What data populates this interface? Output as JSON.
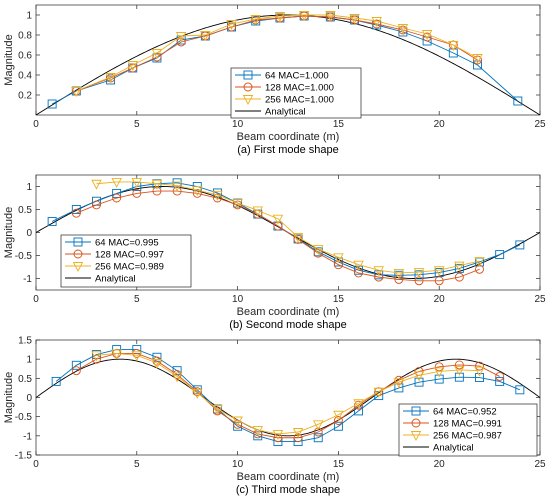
{
  "colors": {
    "s64": "#0072BD",
    "s128": "#D95319",
    "s256": "#EDB120",
    "analytical": "#000000",
    "axis": "#262626"
  },
  "chart_data": [
    {
      "type": "line",
      "caption": "(a) First mode shape",
      "xlabel": "Beam coordinate (m)",
      "ylabel": "Magnitude",
      "xlim": [
        0,
        25
      ],
      "ylim": [
        0,
        1.1
      ],
      "xticks": [
        "0",
        "5",
        "10",
        "15",
        "20",
        "25"
      ],
      "yticks": [
        {
          "v": 0.2,
          "label": "0.2"
        },
        {
          "v": 0.4,
          "label": "0.4"
        },
        {
          "v": 0.6,
          "label": "0.6"
        },
        {
          "v": 0.8,
          "label": "0.8"
        },
        {
          "v": 1.0,
          "label": "1"
        }
      ],
      "legend": {
        "position": "center-bottom",
        "entries": [
          "64 MAC=1.000",
          "128 MAC=1.000",
          "256 MAC=1.000",
          "Analytical"
        ]
      },
      "analytical": {
        "mode": 1,
        "scale": 1.0
      },
      "series": [
        {
          "name": "64 MAC=1.000",
          "marker": "square",
          "x": [
            0.8,
            2.0,
            3.7,
            4.8,
            6.0,
            7.2,
            8.4,
            9.7,
            10.9,
            12.1,
            13.3,
            14.6,
            15.8,
            16.9,
            18.2,
            19.4,
            20.7,
            21.9,
            23.9
          ],
          "y": [
            0.11,
            0.24,
            0.35,
            0.47,
            0.57,
            0.75,
            0.79,
            0.88,
            0.94,
            0.97,
            0.99,
            0.98,
            0.95,
            0.9,
            0.83,
            0.74,
            0.62,
            0.5,
            0.14
          ]
        },
        {
          "name": "128 MAC=1.000",
          "marker": "circle",
          "x": [
            2.0,
            3.7,
            4.8,
            6.0,
            7.2,
            8.4,
            9.7,
            10.9,
            12.1,
            13.3,
            14.6,
            15.8,
            16.9,
            18.2,
            19.4,
            20.7,
            21.9
          ],
          "y": [
            0.24,
            0.37,
            0.47,
            0.58,
            0.73,
            0.79,
            0.88,
            0.95,
            0.97,
            0.99,
            0.98,
            0.95,
            0.91,
            0.85,
            0.78,
            0.7,
            0.55
          ]
        },
        {
          "name": "256 MAC=1.000",
          "marker": "triangle-down",
          "x": [
            2.0,
            3.7,
            4.8,
            6.0,
            7.2,
            8.4,
            9.7,
            10.9,
            12.1,
            13.3,
            14.6,
            15.8,
            16.9,
            18.2,
            19.4,
            20.7,
            21.9
          ],
          "y": [
            0.24,
            0.38,
            0.5,
            0.62,
            0.79,
            0.8,
            0.91,
            0.96,
            0.99,
            1.0,
            1.0,
            0.97,
            0.94,
            0.87,
            0.81,
            0.7,
            0.57
          ]
        }
      ]
    },
    {
      "type": "line",
      "caption": "(b) Second mode shape",
      "xlabel": "Beam coordinate (m)",
      "ylabel": "Magnitude",
      "xlim": [
        0,
        25
      ],
      "ylim": [
        -1.25,
        1.25
      ],
      "xticks": [
        "0",
        "5",
        "10",
        "15",
        "20",
        "25"
      ],
      "yticks": [
        {
          "v": -1,
          "label": "-1"
        },
        {
          "v": -0.5,
          "label": "-0.5"
        },
        {
          "v": 0,
          "label": "0"
        },
        {
          "v": 0.5,
          "label": "0.5"
        },
        {
          "v": 1,
          "label": "1"
        }
      ],
      "legend": {
        "position": "bottom-left",
        "entries": [
          "64 MAC=0.995",
          "128 MAC=0.997",
          "256 MAC=0.989",
          "Analytical"
        ]
      },
      "analytical": {
        "mode": 2,
        "scale": 1.0
      },
      "series": [
        {
          "name": "64 MAC=0.995",
          "marker": "square",
          "x": [
            0.8,
            2.0,
            3.0,
            4.0,
            5.0,
            6.0,
            7.0,
            8.0,
            9.0,
            10.0,
            11.0,
            12.0,
            13.0,
            14.0,
            15.0,
            16.0,
            17.0,
            18.0,
            19.0,
            20.0,
            21.0,
            22.0,
            23.0,
            24.0
          ],
          "y": [
            0.24,
            0.5,
            0.68,
            0.85,
            1.0,
            1.06,
            1.08,
            1.0,
            0.86,
            0.64,
            0.4,
            0.14,
            -0.14,
            -0.42,
            -0.64,
            -0.82,
            -0.92,
            -0.93,
            -0.92,
            -0.87,
            -0.78,
            -0.64,
            -0.48,
            -0.27
          ]
        },
        {
          "name": "128 MAC=0.997",
          "marker": "circle",
          "x": [
            2.0,
            3.0,
            4.0,
            5.0,
            6.0,
            7.0,
            8.0,
            9.0,
            10.0,
            11.0,
            12.0,
            13.0,
            14.0,
            15.0,
            16.0,
            17.0,
            18.0,
            19.0,
            20.0,
            21.0,
            22.0
          ],
          "y": [
            0.42,
            0.6,
            0.75,
            0.85,
            0.9,
            0.9,
            0.85,
            0.75,
            0.6,
            0.4,
            0.14,
            -0.15,
            -0.45,
            -0.7,
            -0.88,
            -0.97,
            -1.02,
            -1.05,
            -1.05,
            -0.97,
            -0.8
          ]
        },
        {
          "name": "256 MAC=0.989",
          "marker": "triangle-down",
          "x": [
            3.0,
            4.0,
            5.0,
            6.0,
            7.0,
            8.0,
            9.0,
            10.0,
            11.0,
            12.0,
            13.0,
            14.0,
            15.0,
            16.0,
            17.0,
            18.0,
            19.0,
            20.0,
            21.0,
            22.0
          ],
          "y": [
            1.06,
            1.1,
            1.1,
            1.06,
            1.02,
            0.92,
            0.82,
            0.64,
            0.48,
            0.3,
            -0.1,
            -0.36,
            -0.54,
            -0.7,
            -0.82,
            -0.88,
            -0.86,
            -0.82,
            -0.72,
            -0.62
          ]
        }
      ]
    },
    {
      "type": "line",
      "caption": "(c) Third mode shape",
      "xlabel": "Beam coordinate (m)",
      "ylabel": "Magnitude",
      "xlim": [
        0,
        25
      ],
      "ylim": [
        -1.5,
        1.5
      ],
      "xticks": [
        "0",
        "5",
        "10",
        "15",
        "20",
        "25"
      ],
      "yticks": [
        {
          "v": -1.5,
          "label": "-1.5"
        },
        {
          "v": -1,
          "label": "-1"
        },
        {
          "v": -0.5,
          "label": "-0.5"
        },
        {
          "v": 0,
          "label": "0"
        },
        {
          "v": 0.5,
          "label": "0.5"
        },
        {
          "v": 1,
          "label": "1"
        },
        {
          "v": 1.5,
          "label": "1.5"
        }
      ],
      "legend": {
        "position": "bottom-right",
        "entries": [
          "64 MAC=0.952",
          "128 MAC=0.991",
          "256 MAC=0.987",
          "Analytical"
        ]
      },
      "analytical": {
        "mode": 3,
        "scale": 1.0
      },
      "series": [
        {
          "name": "64 MAC=0.952",
          "marker": "square",
          "x": [
            1.0,
            2.0,
            3.0,
            4.0,
            5.0,
            6.0,
            7.0,
            8.0,
            9.0,
            10.0,
            11.0,
            12.0,
            13.0,
            14.0,
            15.0,
            16.0,
            17.0,
            18.0,
            19.0,
            20.0,
            21.0,
            22.0,
            23.0,
            24.0
          ],
          "y": [
            0.42,
            0.84,
            1.12,
            1.25,
            1.25,
            1.05,
            0.7,
            0.2,
            -0.3,
            -0.75,
            -1.0,
            -1.15,
            -1.15,
            -1.05,
            -0.75,
            -0.35,
            0.05,
            0.25,
            0.4,
            0.48,
            0.53,
            0.52,
            0.42,
            0.2
          ]
        },
        {
          "name": "128 MAC=0.991",
          "marker": "circle",
          "x": [
            2.0,
            3.0,
            4.0,
            5.0,
            6.0,
            7.0,
            8.0,
            9.0,
            10.0,
            11.0,
            12.0,
            13.0,
            14.0,
            15.0,
            16.0,
            17.0,
            18.0,
            19.0,
            20.0,
            21.0,
            22.0,
            23.0
          ],
          "y": [
            0.7,
            1.0,
            1.15,
            1.15,
            0.95,
            0.6,
            0.15,
            -0.35,
            -0.7,
            -0.95,
            -1.05,
            -1.05,
            -0.9,
            -0.6,
            -0.2,
            0.15,
            0.45,
            0.68,
            0.8,
            0.85,
            0.82,
            0.55
          ]
        },
        {
          "name": "256 MAC=0.987",
          "marker": "triangle-down",
          "x": [
            3.0,
            4.0,
            5.0,
            6.0,
            7.0,
            8.0,
            9.0,
            10.0,
            11.0,
            12.0,
            13.0,
            14.0,
            15.0,
            16.0,
            17.0,
            18.0,
            19.0,
            20.0,
            21.0,
            22.0
          ],
          "y": [
            1.1,
            1.15,
            1.1,
            0.9,
            0.55,
            0.12,
            -0.3,
            -0.6,
            -0.85,
            -0.95,
            -0.9,
            -0.7,
            -0.45,
            -0.15,
            0.15,
            0.4,
            0.58,
            0.68,
            0.72,
            0.7
          ]
        }
      ]
    }
  ]
}
